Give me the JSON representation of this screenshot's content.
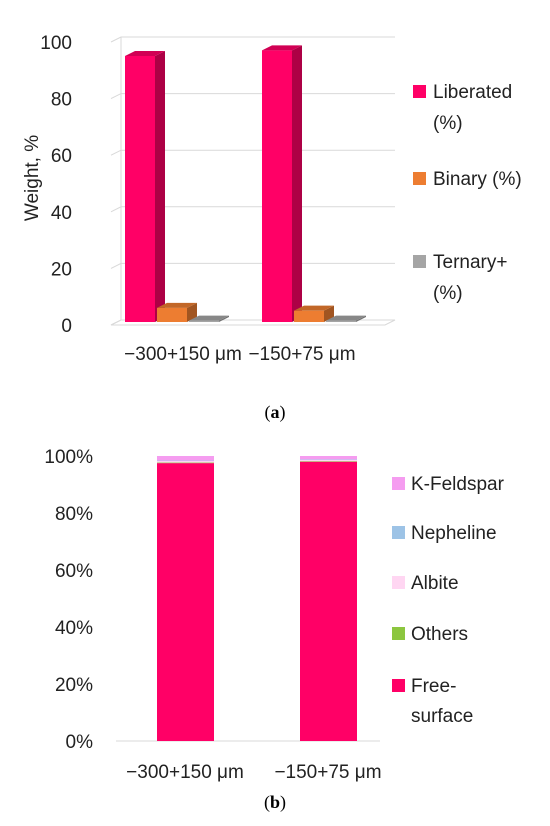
{
  "chart_data": [
    {
      "type": "bar",
      "style": "3d-clustered",
      "caption": [
        "(",
        "a",
        ")"
      ],
      "ylabel": "Weight, %",
      "ylim": [
        0,
        100
      ],
      "yticks": [
        "0",
        "20",
        "40",
        "60",
        "80",
        "100"
      ],
      "grid": true,
      "legend_position": "right",
      "categories": [
        "−300+150 μm",
        "−150+75 μm"
      ],
      "series": [
        {
          "name": [
            "Liberated",
            "(%)"
          ],
          "color": "#ff0066",
          "values": [
            94,
            96
          ]
        },
        {
          "name": [
            "Binary (%)"
          ],
          "color": "#ed7d31",
          "values": [
            5,
            4
          ]
        },
        {
          "name": [
            "Ternary+",
            "(%)"
          ],
          "color": "#a5a5a5",
          "values": [
            0.5,
            0.5
          ]
        }
      ]
    },
    {
      "type": "bar",
      "style": "stacked-100",
      "caption": [
        "(",
        "b",
        ")"
      ],
      "ylim": [
        0,
        100
      ],
      "yticks": [
        "0%",
        "20%",
        "40%",
        "60%",
        "80%",
        "100%"
      ],
      "grid": false,
      "legend_position": "right",
      "categories": [
        "−300+150 μm",
        "−150+75 μm"
      ],
      "series": [
        {
          "name": [
            "Free-",
            "surface"
          ],
          "color": "#ff0066",
          "values": [
            97.5,
            98
          ]
        },
        {
          "name": [
            "Others"
          ],
          "color": "#8cc63f",
          "values": [
            0.2,
            0.2
          ]
        },
        {
          "name": [
            "Albite"
          ],
          "color": "#ffd6f2",
          "values": [
            0.6,
            0.5
          ]
        },
        {
          "name": [
            "Nepheline"
          ],
          "color": "#9dc3e6",
          "values": [
            0.1,
            0.1
          ]
        },
        {
          "name": [
            "K-Feldspar"
          ],
          "color": "#f59cf0",
          "values": [
            1.6,
            1.2
          ]
        }
      ]
    }
  ]
}
